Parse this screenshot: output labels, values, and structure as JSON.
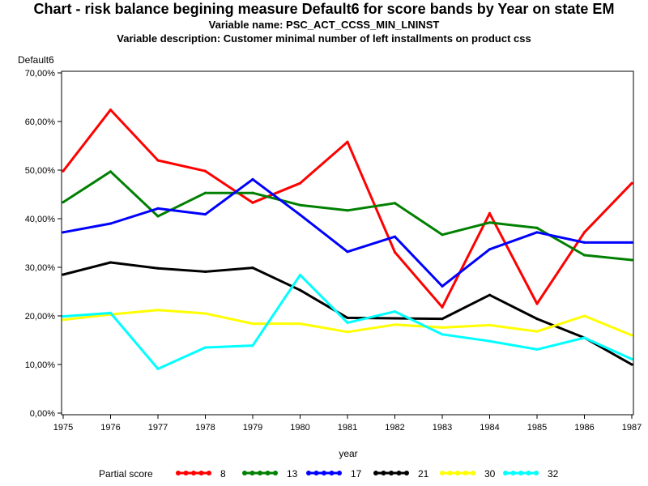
{
  "chart_data": {
    "type": "line",
    "title": "Chart - risk balance begining measure Default6 for score bands by Year on state EM",
    "subtitle_1": "Variable name: PSC_ACT_CCSS_MIN_LNINST",
    "subtitle_2": "Variable description: Customer minimal number of left installments on product css",
    "ylabel": "Default6",
    "xlabel": "year",
    "ylim": [
      0,
      0.7
    ],
    "y_ticks": [
      0,
      0.1,
      0.2,
      0.3,
      0.4,
      0.5,
      0.6,
      0.7
    ],
    "y_tick_labels": [
      "0,00%",
      "10,00%",
      "20,00%",
      "30,00%",
      "40,00%",
      "50,00%",
      "60,00%",
      "70,00%"
    ],
    "x": [
      "1975",
      "1976",
      "1977",
      "1978",
      "1979",
      "1980",
      "1981",
      "1982",
      "1983",
      "1984",
      "1985",
      "1986",
      "1987"
    ],
    "grid": false,
    "legend_title": "Partial score",
    "legend_position": "bottom",
    "series": [
      {
        "name": "8",
        "color": "#ff0000",
        "values": [
          0.498,
          0.624,
          0.52,
          0.498,
          0.433,
          0.473,
          0.558,
          0.331,
          0.218,
          0.411,
          0.225,
          0.372,
          0.473
        ]
      },
      {
        "name": "13",
        "color": "#008000",
        "values": [
          0.434,
          0.497,
          0.405,
          0.453,
          0.453,
          0.428,
          0.417,
          0.432,
          0.367,
          0.392,
          0.381,
          0.325,
          0.315
        ]
      },
      {
        "name": "17",
        "color": "#0000ff",
        "values": [
          0.372,
          0.39,
          0.421,
          0.409,
          0.481,
          0.408,
          0.332,
          0.363,
          0.261,
          0.337,
          0.372,
          0.351,
          0.351
        ]
      },
      {
        "name": "21",
        "color": "#000000",
        "values": [
          0.285,
          0.31,
          0.298,
          0.291,
          0.299,
          0.253,
          0.196,
          0.195,
          0.194,
          0.243,
          0.194,
          0.155,
          0.1
        ]
      },
      {
        "name": "30",
        "color": "#ffff00",
        "values": [
          0.192,
          0.203,
          0.212,
          0.205,
          0.184,
          0.184,
          0.167,
          0.182,
          0.176,
          0.181,
          0.168,
          0.2,
          0.16
        ]
      },
      {
        "name": "32",
        "color": "#00ffff",
        "values": [
          0.199,
          0.206,
          0.091,
          0.135,
          0.139,
          0.284,
          0.186,
          0.209,
          0.162,
          0.148,
          0.131,
          0.155,
          0.111
        ]
      }
    ]
  }
}
